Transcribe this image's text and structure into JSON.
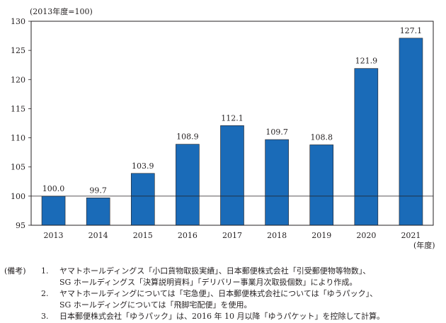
{
  "chart_data": {
    "type": "bar",
    "unit_label": "(2013年度=100)",
    "xlabel": "(年度)",
    "categories": [
      "2013",
      "2014",
      "2015",
      "2016",
      "2017",
      "2018",
      "2019",
      "2020",
      "2021"
    ],
    "values": [
      100.0,
      99.7,
      103.9,
      108.9,
      112.1,
      109.7,
      108.8,
      121.9,
      127.1
    ],
    "value_labels": [
      "100.0",
      "99.7",
      "103.9",
      "108.9",
      "112.1",
      "109.7",
      "108.8",
      "121.9",
      "127.1"
    ],
    "ylim": [
      95,
      130
    ],
    "yticks": [
      95,
      100,
      105,
      110,
      115,
      120,
      125,
      130
    ],
    "reference_line": 100,
    "bar_color": "#1a6bb8",
    "grid": false
  },
  "notes": {
    "label": "(備考)",
    "items": [
      {
        "num": "1.",
        "lines": [
          "ヤマトホールディングス「小口貨物取扱実績」、日本郵便株式会社「引受郵便物等物数」、",
          "SG ホールディングス「決算説明資料」「デリバリー事業月次取扱個数」により作成。"
        ]
      },
      {
        "num": "2.",
        "lines": [
          "ヤマトホールディングについては「宅急便」、日本郵便株式会社については「ゆうパック」、",
          "SG ホールディングについては「飛脚宅配便」を使用。"
        ]
      },
      {
        "num": "3.",
        "lines": [
          "日本郵便株式会社「ゆうパック」は、2016 年 10 月以降「ゆうパケット」を控除して計算。"
        ]
      }
    ]
  }
}
